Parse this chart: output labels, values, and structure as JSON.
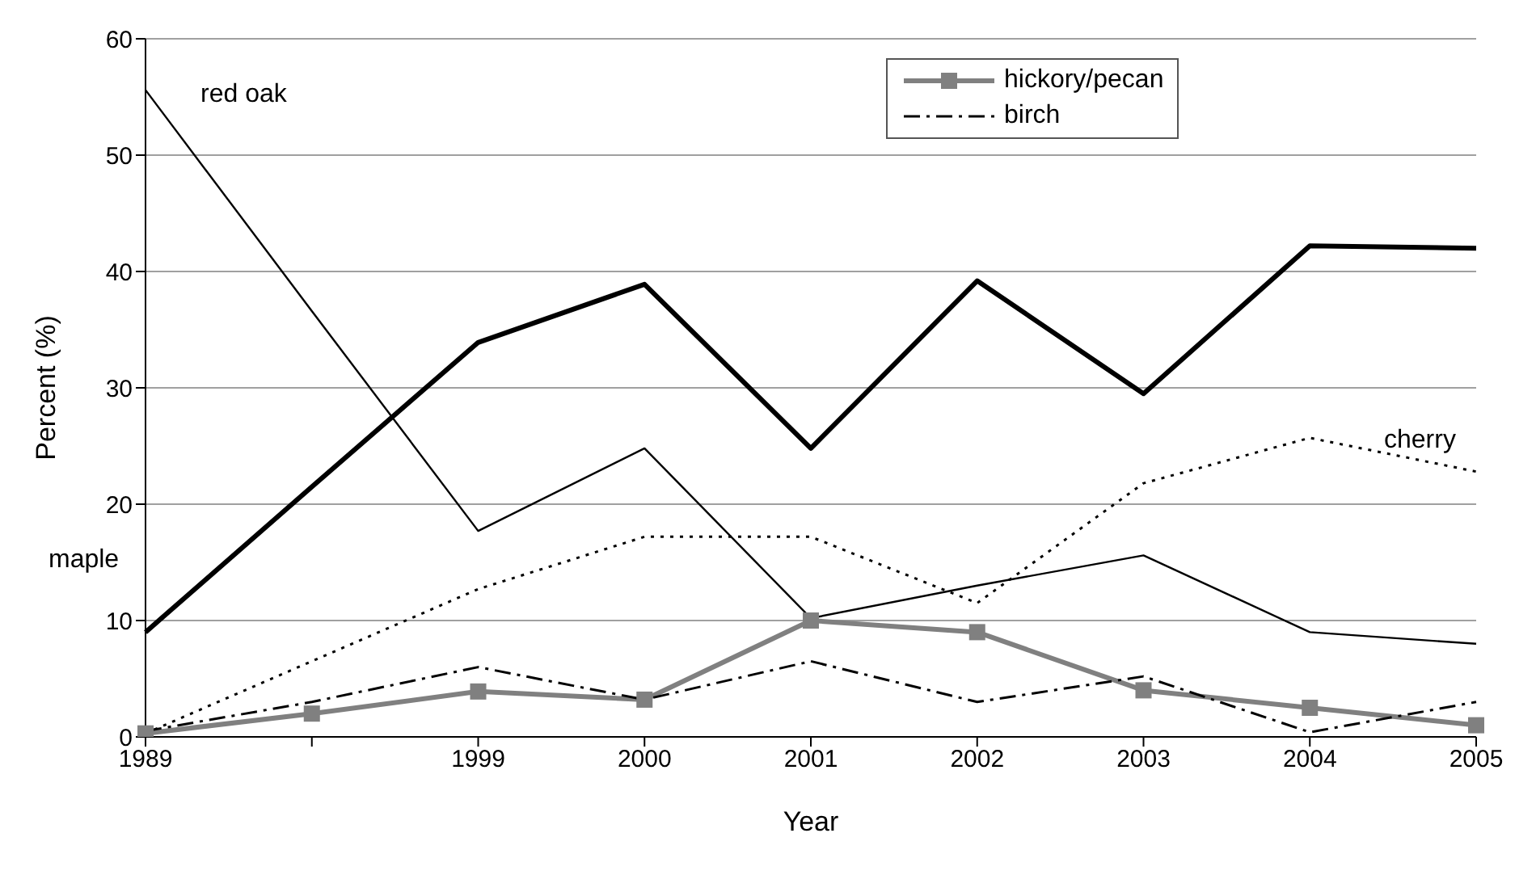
{
  "chart_data": {
    "type": "line",
    "xlabel": "Year",
    "ylabel": "Percent (%)",
    "categories": [
      "1989",
      null,
      "1999",
      "2000",
      "2001",
      "2002",
      "2003",
      "2004",
      "2005"
    ],
    "ylim": [
      0,
      60
    ],
    "yticks": [
      0,
      10,
      20,
      30,
      40,
      50,
      60
    ],
    "grid": "y",
    "legend": "top",
    "series": [
      {
        "color": "#000000",
        "line_style": "solid",
        "values": [
          9,
          21.5,
          33.9,
          38.9,
          24.8,
          39.2,
          29.5,
          42.2,
          42
        ]
      },
      {
        "color": "#000000",
        "line_style": "solid",
        "values": [
          55.6,
          36.6,
          17.7,
          24.8,
          10.2,
          13,
          15.6,
          9,
          8
        ]
      },
      {
        "color": "#000000",
        "line_style": "dotted",
        "values": [
          0.3,
          6.5,
          12.7,
          17.2,
          17.2,
          11.5,
          21.8,
          25.7,
          22.8
        ]
      },
      {
        "name": "hickory/pecan",
        "color": "#808080",
        "line_style": "solid",
        "marker": "square",
        "values": [
          0.3,
          2,
          3.9,
          3.2,
          10,
          9,
          4,
          2.5,
          1
        ]
      },
      {
        "name": "birch",
        "color": "#000000",
        "line_style": "dashed",
        "values": [
          0.5,
          3,
          6,
          3.2,
          6.5,
          3,
          5.2,
          0.4,
          3
        ]
      }
    ],
    "annotations": [
      "red oak",
      "maple",
      "cherry"
    ]
  }
}
